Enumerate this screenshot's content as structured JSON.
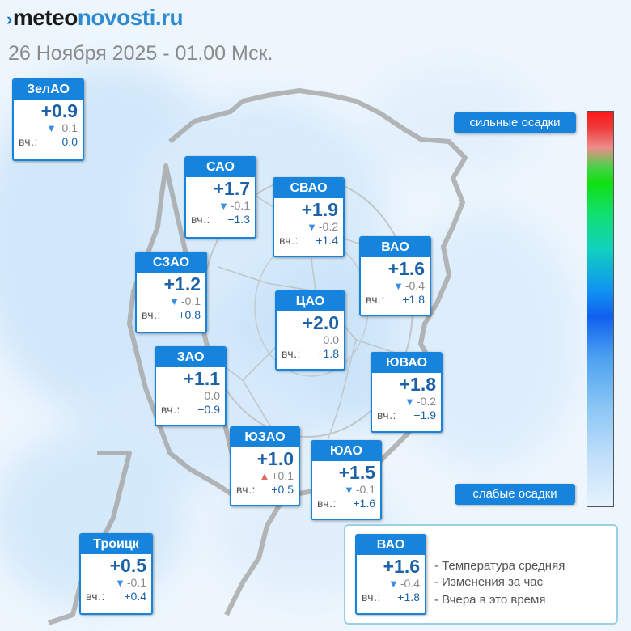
{
  "logo": {
    "arrow": "›",
    "part1": "meteo",
    "part2": "novosti.ru"
  },
  "subtitle": "26 Ноября 2025 - 01.00 Мск.",
  "districts": {
    "zelao": {
      "name": "ЗелАО",
      "temp": "+0.9",
      "change": "-0.1",
      "yesterday_label": "вч.:",
      "yesterday": "0.0"
    },
    "sao": {
      "name": "САО",
      "temp": "+1.7",
      "change": "-0.1",
      "yesterday_label": "вч.:",
      "yesterday": "+1.3"
    },
    "svao": {
      "name": "СВАО",
      "temp": "+1.9",
      "change": "-0.2",
      "yesterday_label": "вч.:",
      "yesterday": "+1.4"
    },
    "vao": {
      "name": "ВАО",
      "temp": "+1.6",
      "change": "-0.4",
      "yesterday_label": "вч.:",
      "yesterday": "+1.8"
    },
    "szao": {
      "name": "СЗАО",
      "temp": "+1.2",
      "change": "-0.1",
      "yesterday_label": "вч.:",
      "yesterday": "+0.8"
    },
    "cao": {
      "name": "ЦАО",
      "temp": "+2.0",
      "change": "0.0",
      "yesterday_label": "вч.:",
      "yesterday": "+1.8"
    },
    "zao": {
      "name": "ЗАО",
      "temp": "+1.1",
      "change": "0.0",
      "yesterday_label": "вч.:",
      "yesterday": "+0.9"
    },
    "yuvao": {
      "name": "ЮВАО",
      "temp": "+1.8",
      "change": "-0.2",
      "yesterday_label": "вч.:",
      "yesterday": "+1.9"
    },
    "yuzao": {
      "name": "ЮЗАО",
      "temp": "+1.0",
      "change": "+0.1",
      "yesterday_label": "вч.:",
      "yesterday": "+0.5"
    },
    "yuao": {
      "name": "ЮАО",
      "temp": "+1.5",
      "change": "-0.1",
      "yesterday_label": "вч.:",
      "yesterday": "+1.6"
    },
    "troitsk": {
      "name": "Троицк",
      "temp": "+0.5",
      "change": "-0.1",
      "yesterday_label": "вч.:",
      "yesterday": "+0.4"
    }
  },
  "scale": {
    "top_label": "сильные осадки",
    "bottom_label": "слабые осадки"
  },
  "legend": {
    "card": {
      "name": "ВАО",
      "temp": "+1.6",
      "change": "-0.4",
      "yesterday_label": "вч.:",
      "yesterday": "+1.8"
    },
    "line1": "- Температура средняя",
    "line2": "- Изменения за час",
    "line3": "- Вчера в это время"
  },
  "colors": {
    "accent": "#1683dc",
    "temp_text": "#1b62a8",
    "down_arrow": "#3c8fe0",
    "up_arrow": "#e06a6a"
  }
}
